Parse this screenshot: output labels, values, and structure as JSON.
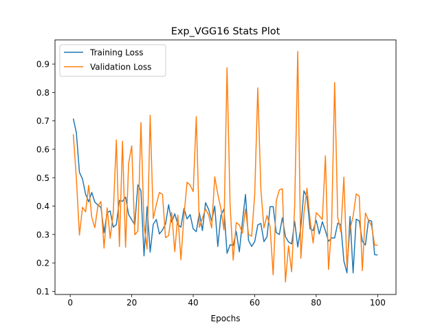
{
  "chart_data": {
    "type": "line",
    "title": "Exp_VGG16 Stats Plot",
    "xlabel": "Epochs",
    "ylabel": "",
    "xlim": [
      -4.95,
      105.95
    ],
    "ylim": [
      0.089,
      0.985
    ],
    "x_ticks": [
      0,
      20,
      40,
      60,
      80,
      100
    ],
    "y_ticks": [
      0.1,
      0.2,
      0.3,
      0.4,
      0.5,
      0.6,
      0.7,
      0.8,
      0.9
    ],
    "grid": false,
    "legend_position": "top-left",
    "x": [
      1,
      2,
      3,
      4,
      5,
      6,
      7,
      8,
      9,
      10,
      11,
      12,
      13,
      14,
      15,
      16,
      17,
      18,
      19,
      20,
      21,
      22,
      23,
      24,
      25,
      26,
      27,
      28,
      29,
      30,
      31,
      32,
      33,
      34,
      35,
      36,
      37,
      38,
      39,
      40,
      41,
      42,
      43,
      44,
      45,
      46,
      47,
      48,
      49,
      50,
      51,
      52,
      53,
      54,
      55,
      56,
      57,
      58,
      59,
      60,
      61,
      62,
      63,
      64,
      65,
      66,
      67,
      68,
      69,
      70,
      71,
      72,
      73,
      74,
      75,
      76,
      77,
      78,
      79,
      80,
      81,
      82,
      83,
      84,
      85,
      86,
      87,
      88,
      89,
      90,
      91,
      92,
      93,
      94,
      95,
      96,
      97,
      98,
      99,
      100
    ],
    "series": [
      {
        "name": "Training Loss",
        "color": "#1f77b4",
        "values": [
          0.708,
          0.658,
          0.519,
          0.495,
          0.442,
          0.415,
          0.448,
          0.414,
          0.404,
          0.395,
          0.307,
          0.377,
          0.383,
          0.326,
          0.335,
          0.42,
          0.417,
          0.432,
          0.37,
          0.352,
          0.335,
          0.475,
          0.454,
          0.225,
          0.398,
          0.238,
          0.336,
          0.353,
          0.302,
          0.316,
          0.337,
          0.405,
          0.344,
          0.373,
          0.335,
          0.326,
          0.392,
          0.355,
          0.37,
          0.32,
          0.31,
          0.377,
          0.314,
          0.412,
          0.389,
          0.348,
          0.4,
          0.258,
          0.367,
          0.39,
          0.234,
          0.264,
          0.261,
          0.311,
          0.239,
          0.345,
          0.441,
          0.279,
          0.258,
          0.275,
          0.334,
          0.339,
          0.275,
          0.292,
          0.398,
          0.398,
          0.307,
          0.3,
          0.359,
          0.292,
          0.274,
          0.267,
          0.346,
          0.256,
          0.325,
          0.454,
          0.432,
          0.32,
          0.314,
          0.35,
          0.302,
          0.345,
          0.313,
          0.276,
          0.288,
          0.288,
          0.34,
          0.335,
          0.207,
          0.165,
          0.364,
          0.165,
          0.354,
          0.348,
          0.276,
          0.263,
          0.351,
          0.347,
          0.229,
          0.228
        ]
      },
      {
        "name": "Validation Loss",
        "color": "#ff7f0e",
        "values": [
          0.653,
          0.498,
          0.298,
          0.396,
          0.38,
          0.473,
          0.361,
          0.324,
          0.401,
          0.416,
          0.252,
          0.394,
          0.287,
          0.378,
          0.633,
          0.258,
          0.628,
          0.255,
          0.551,
          0.612,
          0.299,
          0.312,
          0.694,
          0.332,
          0.249,
          0.72,
          0.356,
          0.405,
          0.448,
          0.441,
          0.289,
          0.296,
          0.378,
          0.24,
          0.368,
          0.211,
          0.368,
          0.484,
          0.474,
          0.451,
          0.715,
          0.325,
          0.358,
          0.39,
          0.369,
          0.323,
          0.503,
          0.442,
          0.391,
          0.316,
          0.887,
          0.402,
          0.21,
          0.342,
          0.334,
          0.305,
          0.39,
          0.3,
          0.294,
          0.44,
          0.816,
          0.46,
          0.323,
          0.367,
          0.328,
          0.158,
          0.418,
          0.457,
          0.461,
          0.133,
          0.26,
          0.169,
          0.4,
          0.944,
          0.216,
          0.374,
          0.463,
          0.352,
          0.27,
          0.377,
          0.366,
          0.353,
          0.577,
          0.177,
          0.326,
          0.835,
          0.361,
          0.309,
          0.502,
          0.187,
          0.32,
          0.363,
          0.443,
          0.435,
          0.173,
          0.376,
          0.35,
          0.331,
          0.263,
          0.262
        ]
      }
    ]
  }
}
